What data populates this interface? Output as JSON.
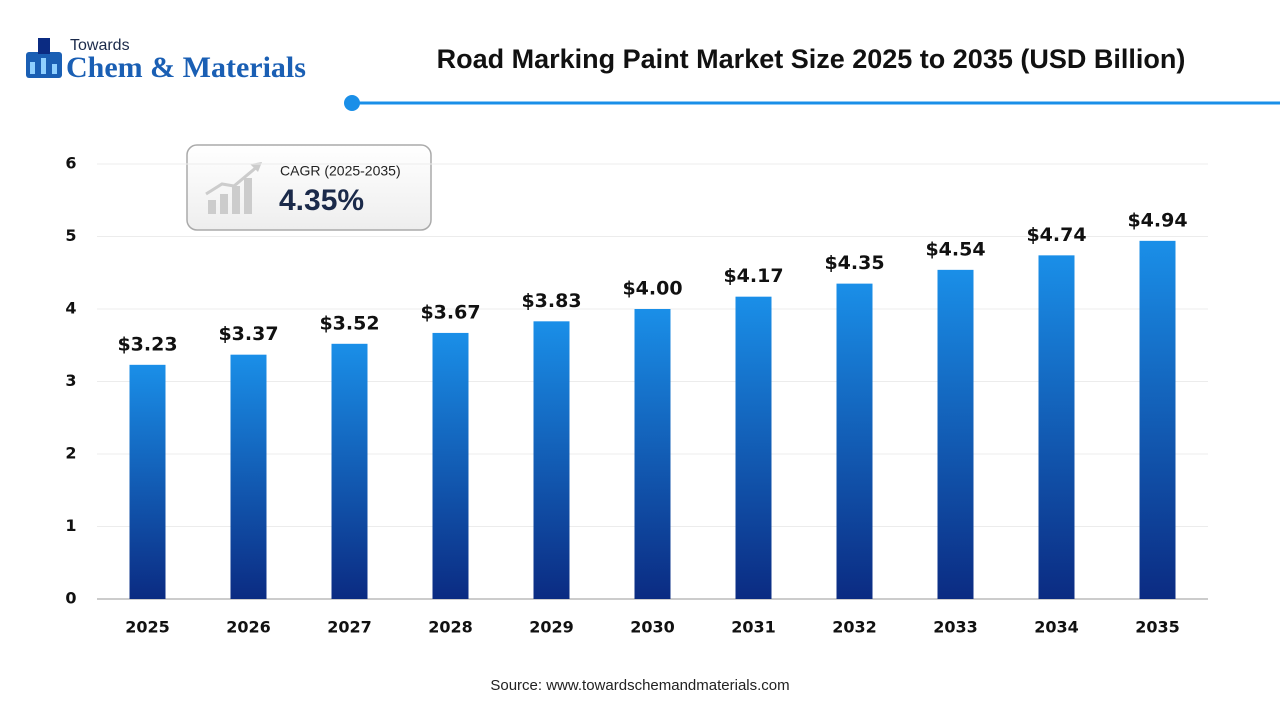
{
  "logo": {
    "top": "Towards",
    "main": "Chem & Materials"
  },
  "chart_data": {
    "type": "bar",
    "title": "Road Marking Paint Market Size 2025 to 2035 (USD Billion)",
    "categories": [
      "2025",
      "2026",
      "2027",
      "2028",
      "2029",
      "2030",
      "2031",
      "2032",
      "2033",
      "2034",
      "2035"
    ],
    "values": [
      3.23,
      3.37,
      3.52,
      3.67,
      3.83,
      4.0,
      4.17,
      4.35,
      4.54,
      4.74,
      4.94
    ],
    "value_labels": [
      "$3.23",
      "$3.37",
      "$3.52",
      "$3.67",
      "$3.83",
      "$4.00",
      "$4.17",
      "$4.35",
      "$4.54",
      "$4.74",
      "$4.94"
    ],
    "color": "#1a8fe8",
    "ylim": [
      0,
      6
    ],
    "yticks": [
      0,
      1,
      2,
      3,
      4,
      5,
      6
    ],
    "grid": true,
    "annotation": {
      "label": "CAGR (2025-2035)",
      "value": "4.35%"
    },
    "source": "Source: www.towardschemandmaterials.com"
  }
}
